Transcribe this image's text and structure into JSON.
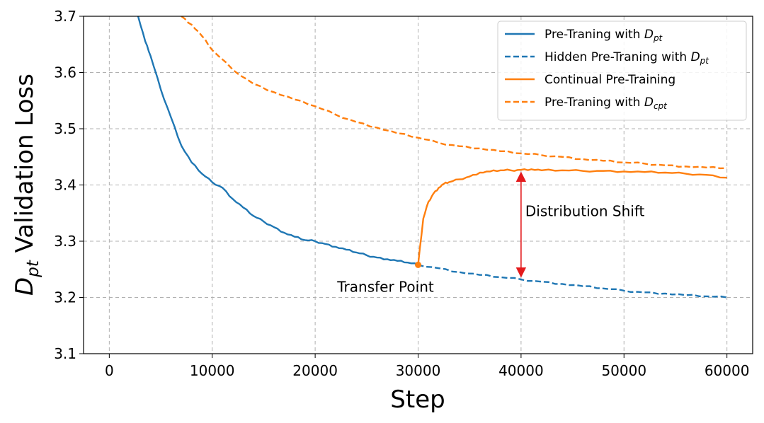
{
  "chart_data": {
    "type": "line",
    "xlabel": "Step",
    "ylabel": {
      "base": "D",
      "sub": "pt",
      "rest": " Validation Loss"
    },
    "xlim": [
      -2500,
      62500
    ],
    "ylim": [
      3.1,
      3.7
    ],
    "xticks": [
      0,
      10000,
      20000,
      30000,
      40000,
      50000,
      60000
    ],
    "yticks": [
      3.1,
      3.2,
      3.3,
      3.4,
      3.5,
      3.6,
      3.7
    ],
    "xtick_labels": [
      "0",
      "10000",
      "20000",
      "30000",
      "40000",
      "50000",
      "60000"
    ],
    "ytick_labels": [
      "3.1",
      "3.2",
      "3.3",
      "3.4",
      "3.5",
      "3.6",
      "3.7"
    ],
    "grid": true,
    "legend_position": "top-right",
    "colors": {
      "blue": "#1f77b4",
      "orange": "#ff7f0e",
      "arrow": "#e41a1c",
      "grid": "#b0b0b0"
    },
    "series": [
      {
        "name": "Pre-Traning with D_pt",
        "legend": {
          "prefix": "Pre-Traning with ",
          "base": "D",
          "sub": "pt"
        },
        "color": "#1f77b4",
        "dash": "solid",
        "x": [
          2800,
          3500,
          4000,
          5000,
          6000,
          7000,
          8000,
          9000,
          10000,
          11000,
          12000,
          13000,
          14000,
          15000,
          16000,
          17000,
          18000,
          19000,
          20000,
          21000,
          22000,
          23000,
          24000,
          25000,
          26000,
          27000,
          28000,
          29000,
          30000
        ],
        "y": [
          3.7,
          3.655,
          3.63,
          3.57,
          3.52,
          3.47,
          3.44,
          3.42,
          3.405,
          3.395,
          3.375,
          3.36,
          3.345,
          3.335,
          3.325,
          3.315,
          3.308,
          3.302,
          3.3,
          3.295,
          3.29,
          3.285,
          3.28,
          3.275,
          3.271,
          3.268,
          3.265,
          3.262,
          3.258
        ]
      },
      {
        "name": "Hidden Pre-Traning with D_pt",
        "legend": {
          "prefix": "Hidden Pre-Traning with ",
          "base": "D",
          "sub": "pt"
        },
        "color": "#1f77b4",
        "dash": "dashed",
        "x": [
          30000,
          32000,
          34000,
          36000,
          38000,
          40000,
          42000,
          44000,
          46000,
          48000,
          50000,
          52000,
          54000,
          56000,
          58000,
          60000
        ],
        "y": [
          3.258,
          3.252,
          3.245,
          3.24,
          3.236,
          3.232,
          3.228,
          3.224,
          3.22,
          3.216,
          3.212,
          3.209,
          3.207,
          3.204,
          3.202,
          3.2
        ]
      },
      {
        "name": "Continual Pre-Training",
        "legend": {
          "prefix": "Continual Pre-Training",
          "base": "",
          "sub": ""
        },
        "color": "#ff7f0e",
        "dash": "solid",
        "x": [
          30000,
          30500,
          31000,
          31500,
          32000,
          32500,
          33000,
          34000,
          35000,
          36000,
          37000,
          38000,
          39000,
          40000,
          41000,
          42000,
          44000,
          46000,
          48000,
          50000,
          52000,
          54000,
          56000,
          58000,
          60000
        ],
        "y": [
          3.258,
          3.34,
          3.37,
          3.385,
          3.395,
          3.402,
          3.405,
          3.41,
          3.415,
          3.422,
          3.424,
          3.426,
          3.426,
          3.427,
          3.428,
          3.426,
          3.426,
          3.425,
          3.425,
          3.424,
          3.423,
          3.422,
          3.42,
          3.418,
          3.413
        ]
      },
      {
        "name": "Pre-Traning with D_cpt",
        "legend": {
          "prefix": "Pre-Traning with ",
          "base": "D",
          "sub": "cpt"
        },
        "color": "#ff7f0e",
        "dash": "dashed",
        "x": [
          7000,
          8000,
          9000,
          10000,
          12000,
          14000,
          16000,
          18000,
          20000,
          22000,
          24000,
          26000,
          28000,
          30000,
          32000,
          34000,
          36000,
          38000,
          40000,
          42000,
          44000,
          46000,
          48000,
          50000,
          52000,
          54000,
          56000,
          58000,
          60000
        ],
        "y": [
          3.7,
          3.685,
          3.665,
          3.64,
          3.605,
          3.58,
          3.565,
          3.552,
          3.54,
          3.525,
          3.512,
          3.502,
          3.492,
          3.484,
          3.475,
          3.469,
          3.465,
          3.46,
          3.456,
          3.453,
          3.45,
          3.446,
          3.443,
          3.44,
          3.438,
          3.435,
          3.433,
          3.431,
          3.43
        ]
      }
    ],
    "annotations": {
      "transfer_point": {
        "label": "Transfer Point",
        "x": 30000,
        "y": 3.258
      },
      "distribution_shift": {
        "label": "Distribution Shift",
        "x": 40000,
        "y_top": 3.427,
        "y_bottom": 3.232
      }
    }
  }
}
